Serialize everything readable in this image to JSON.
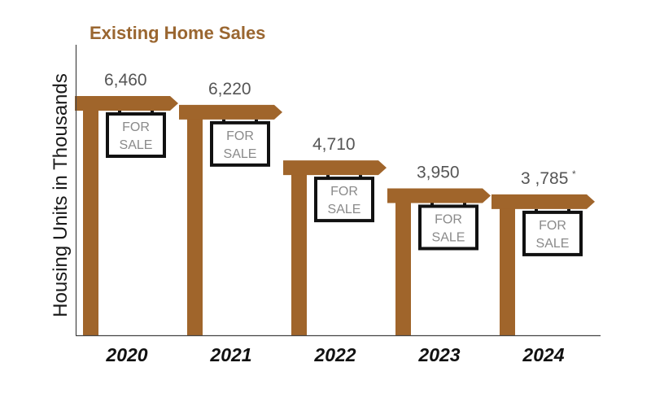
{
  "chart_data": {
    "type": "bar",
    "title": "Existing Home Sales",
    "ylabel": "Housing Units in Thousands",
    "xlabel": "",
    "categories": [
      "2020",
      "2021",
      "2022",
      "2023",
      "2024"
    ],
    "values": [
      6460,
      6220,
      4710,
      3950,
      3785
    ],
    "value_labels": [
      "6,460",
      "6,220",
      "4,710",
      "3,950",
      "3 ,785"
    ],
    "value_notes": [
      "",
      "",
      "",
      "",
      "*"
    ],
    "sign_text": [
      "FOR",
      "SALE"
    ],
    "ylim": [
      0,
      7500
    ],
    "grid": false,
    "bar_style": "for-sale sign post",
    "colors": {
      "post": "#a0652b",
      "title": "#9a6630",
      "sign_border": "#111111",
      "sign_text": "#8a8a8a",
      "value_label": "#555555"
    }
  }
}
